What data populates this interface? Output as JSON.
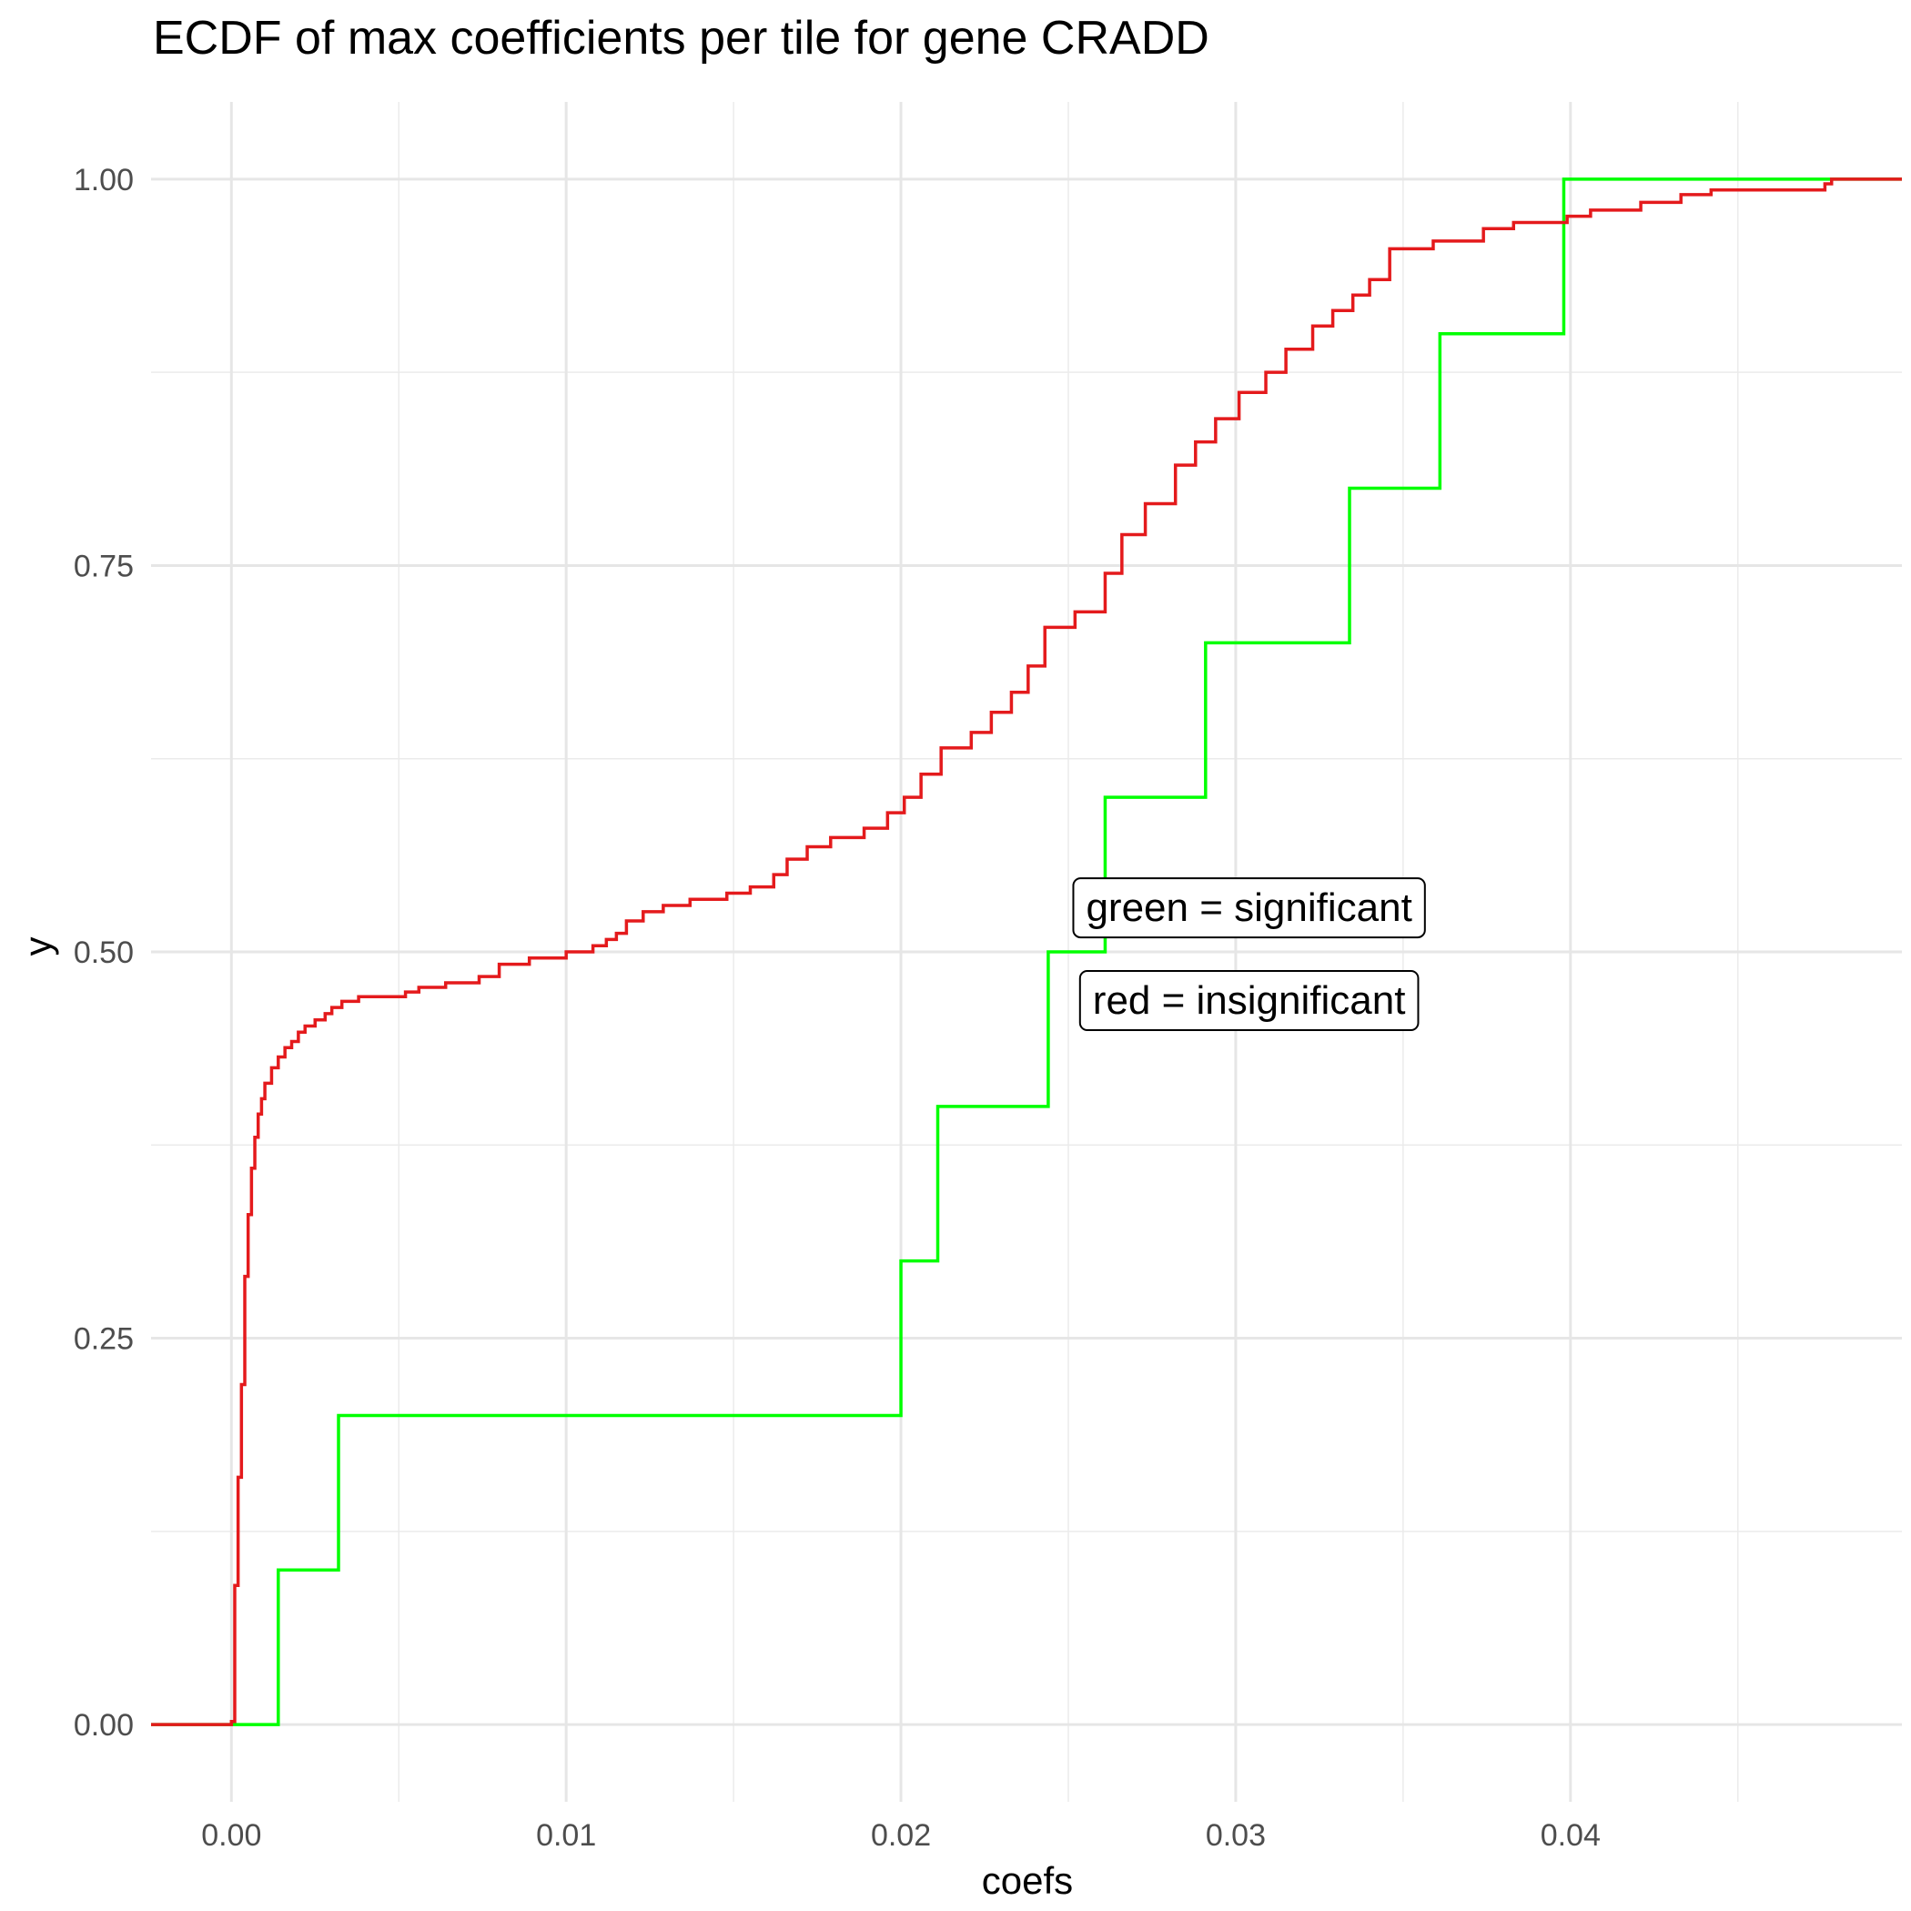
{
  "chart_data": {
    "type": "line",
    "subtype": "ecdf-step",
    "title": "ECDF of max coefficients per tile for gene CRADD",
    "xlabel": "coefs",
    "ylabel": "y",
    "xlim": [
      -0.0024,
      0.0499
    ],
    "ylim": [
      -0.05,
      1.05
    ],
    "x_ticks": [
      0.0,
      0.01,
      0.02,
      0.03,
      0.04
    ],
    "x_tick_labels": [
      "0.00",
      "0.01",
      "0.02",
      "0.03",
      "0.04"
    ],
    "y_ticks": [
      0.0,
      0.25,
      0.5,
      0.75,
      1.0
    ],
    "y_tick_labels": [
      "0.00",
      "0.25",
      "0.50",
      "0.75",
      "1.00"
    ],
    "grid": true,
    "series": [
      {
        "name": "significant",
        "color": "#00ff00",
        "x": [
          0.0014,
          0.0032,
          0.02,
          0.0211,
          0.0244,
          0.0261,
          0.0291,
          0.0334,
          0.0361,
          0.0398
        ],
        "y": [
          0.1,
          0.2,
          0.3,
          0.4,
          0.5,
          0.6,
          0.7,
          0.8,
          0.9,
          1.0
        ]
      },
      {
        "name": "insignificant",
        "color": "#e41a1c",
        "x": [
          0.0,
          0.0001,
          0.0002,
          0.0003,
          0.0004,
          0.0005,
          0.0006,
          0.0007,
          0.0008,
          0.0009,
          0.001,
          0.0012,
          0.0014,
          0.0016,
          0.0018,
          0.002,
          0.0022,
          0.0025,
          0.0028,
          0.003,
          0.0033,
          0.0038,
          0.0052,
          0.0056,
          0.0064,
          0.0074,
          0.008,
          0.0089,
          0.01,
          0.0108,
          0.0112,
          0.0115,
          0.0118,
          0.0123,
          0.0129,
          0.0137,
          0.0148,
          0.0155,
          0.0162,
          0.0166,
          0.0172,
          0.0179,
          0.0189,
          0.0196,
          0.0201,
          0.0206,
          0.0212,
          0.0221,
          0.0227,
          0.0233,
          0.0238,
          0.0243,
          0.0252,
          0.0261,
          0.0266,
          0.0273,
          0.0282,
          0.0288,
          0.0294,
          0.0301,
          0.0309,
          0.0315,
          0.0323,
          0.0329,
          0.0335,
          0.034,
          0.0346,
          0.0359,
          0.0374,
          0.0383,
          0.0399,
          0.0406,
          0.0421,
          0.0433,
          0.0442,
          0.0476,
          0.0478
        ],
        "y": [
          0.002,
          0.09,
          0.16,
          0.22,
          0.29,
          0.33,
          0.36,
          0.38,
          0.395,
          0.405,
          0.415,
          0.425,
          0.432,
          0.438,
          0.442,
          0.448,
          0.452,
          0.456,
          0.46,
          0.464,
          0.468,
          0.471,
          0.474,
          0.477,
          0.48,
          0.484,
          0.492,
          0.496,
          0.5,
          0.504,
          0.508,
          0.512,
          0.52,
          0.526,
          0.53,
          0.534,
          0.538,
          0.542,
          0.55,
          0.56,
          0.568,
          0.574,
          0.58,
          0.59,
          0.6,
          0.615,
          0.632,
          0.642,
          0.655,
          0.668,
          0.685,
          0.71,
          0.72,
          0.745,
          0.77,
          0.79,
          0.815,
          0.83,
          0.845,
          0.862,
          0.875,
          0.89,
          0.905,
          0.915,
          0.925,
          0.935,
          0.955,
          0.96,
          0.968,
          0.972,
          0.976,
          0.98,
          0.985,
          0.99,
          0.993,
          0.997,
          1.0
        ]
      }
    ],
    "annotations": [
      {
        "text": "green = significant",
        "x": 0.0304,
        "y": 0.5285
      },
      {
        "text": "red = insignificant",
        "x": 0.0304,
        "y": 0.4685
      }
    ]
  }
}
